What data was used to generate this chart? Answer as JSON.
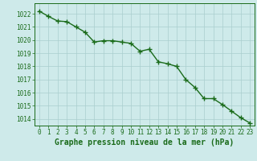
{
  "x": [
    0,
    1,
    2,
    3,
    4,
    5,
    6,
    7,
    8,
    9,
    10,
    11,
    12,
    13,
    14,
    15,
    16,
    17,
    18,
    19,
    20,
    21,
    22,
    23
  ],
  "y": [
    1022.2,
    1021.8,
    1021.45,
    1021.4,
    1021.0,
    1020.6,
    1019.85,
    1019.95,
    1019.95,
    1019.85,
    1019.75,
    1019.15,
    1019.3,
    1018.35,
    1018.2,
    1018.0,
    1017.0,
    1016.4,
    1015.55,
    1015.55,
    1015.1,
    1014.6,
    1014.1,
    1013.7
  ],
  "line_color": "#1a6b1a",
  "marker": "+",
  "marker_size": 4,
  "line_width": 1.0,
  "bg_color": "#ceeaea",
  "grid_color": "#aacece",
  "axis_label_color": "#1a6b1a",
  "tick_color": "#1a6b1a",
  "xlabel": "Graphe pression niveau de la mer (hPa)",
  "ylim": [
    1013.5,
    1022.8
  ],
  "xlim": [
    -0.5,
    23.5
  ],
  "yticks": [
    1014,
    1015,
    1016,
    1017,
    1018,
    1019,
    1020,
    1021,
    1022
  ],
  "xticks": [
    0,
    1,
    2,
    3,
    4,
    5,
    6,
    7,
    8,
    9,
    10,
    11,
    12,
    13,
    14,
    15,
    16,
    17,
    18,
    19,
    20,
    21,
    22,
    23
  ],
  "xlabel_fontsize": 7.0,
  "tick_fontsize": 5.5
}
